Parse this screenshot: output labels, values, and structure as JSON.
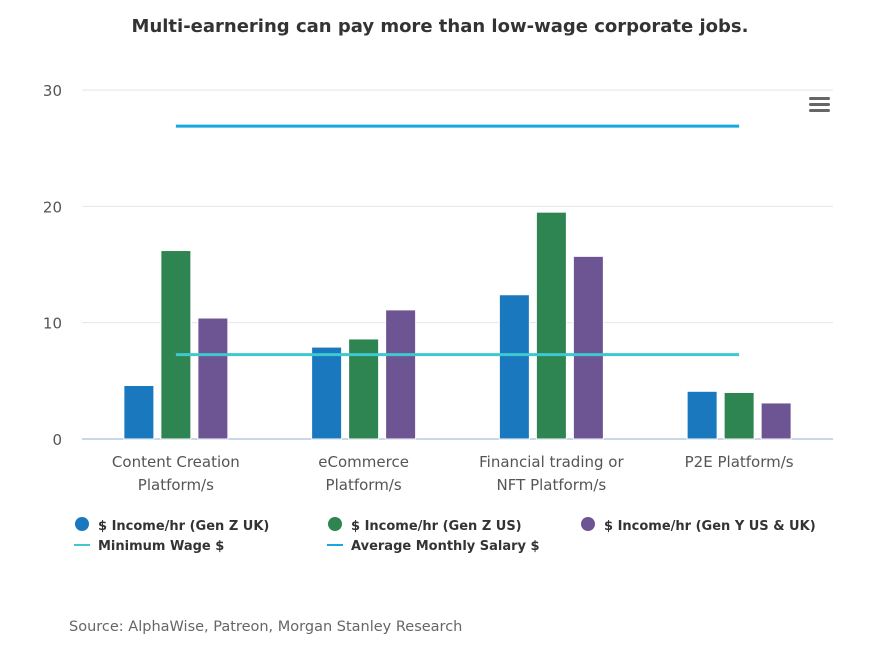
{
  "chart_data": {
    "type": "bar",
    "title": "Multi-earnering can pay more than low-wage corporate jobs.",
    "xlabel": "",
    "ylabel": "",
    "ylim": [
      0,
      30
    ],
    "yticks": [
      0,
      10,
      20,
      30
    ],
    "grid": true,
    "categories": [
      [
        "Content Creation",
        "Platform/s"
      ],
      [
        "eCommerce",
        "Platform/s"
      ],
      [
        "Financial trading or",
        "NFT Platform/s"
      ],
      [
        "P2E Platform/s"
      ]
    ],
    "series": [
      {
        "name": "$ Income/hr (Gen Z UK)",
        "kind": "bar",
        "color": "#1a78be",
        "values": [
          4.6,
          7.9,
          12.4,
          4.1
        ]
      },
      {
        "name": "$ Income/hr (Gen Z US)",
        "kind": "bar",
        "color": "#2e8551",
        "values": [
          16.2,
          8.6,
          19.5,
          4.0
        ]
      },
      {
        "name": "$ Income/hr (Gen Y US & UK)",
        "kind": "bar",
        "color": "#6d5593",
        "values": [
          10.4,
          11.1,
          15.7,
          3.1
        ]
      },
      {
        "name": "Minimum Wage $",
        "kind": "line",
        "color": "#3fc9cf",
        "values": [
          7.25,
          7.25,
          7.25,
          7.25
        ]
      },
      {
        "name": "Average Monthly Salary $",
        "kind": "line",
        "color": "#1ba6dd",
        "values": [
          26.9,
          26.9,
          26.9,
          26.9
        ]
      }
    ],
    "legend_position": "bottom",
    "source": "Source: AlphaWise, Patreon, Morgan Stanley Research"
  },
  "menu": {
    "icon": "hamburger-menu-icon"
  }
}
